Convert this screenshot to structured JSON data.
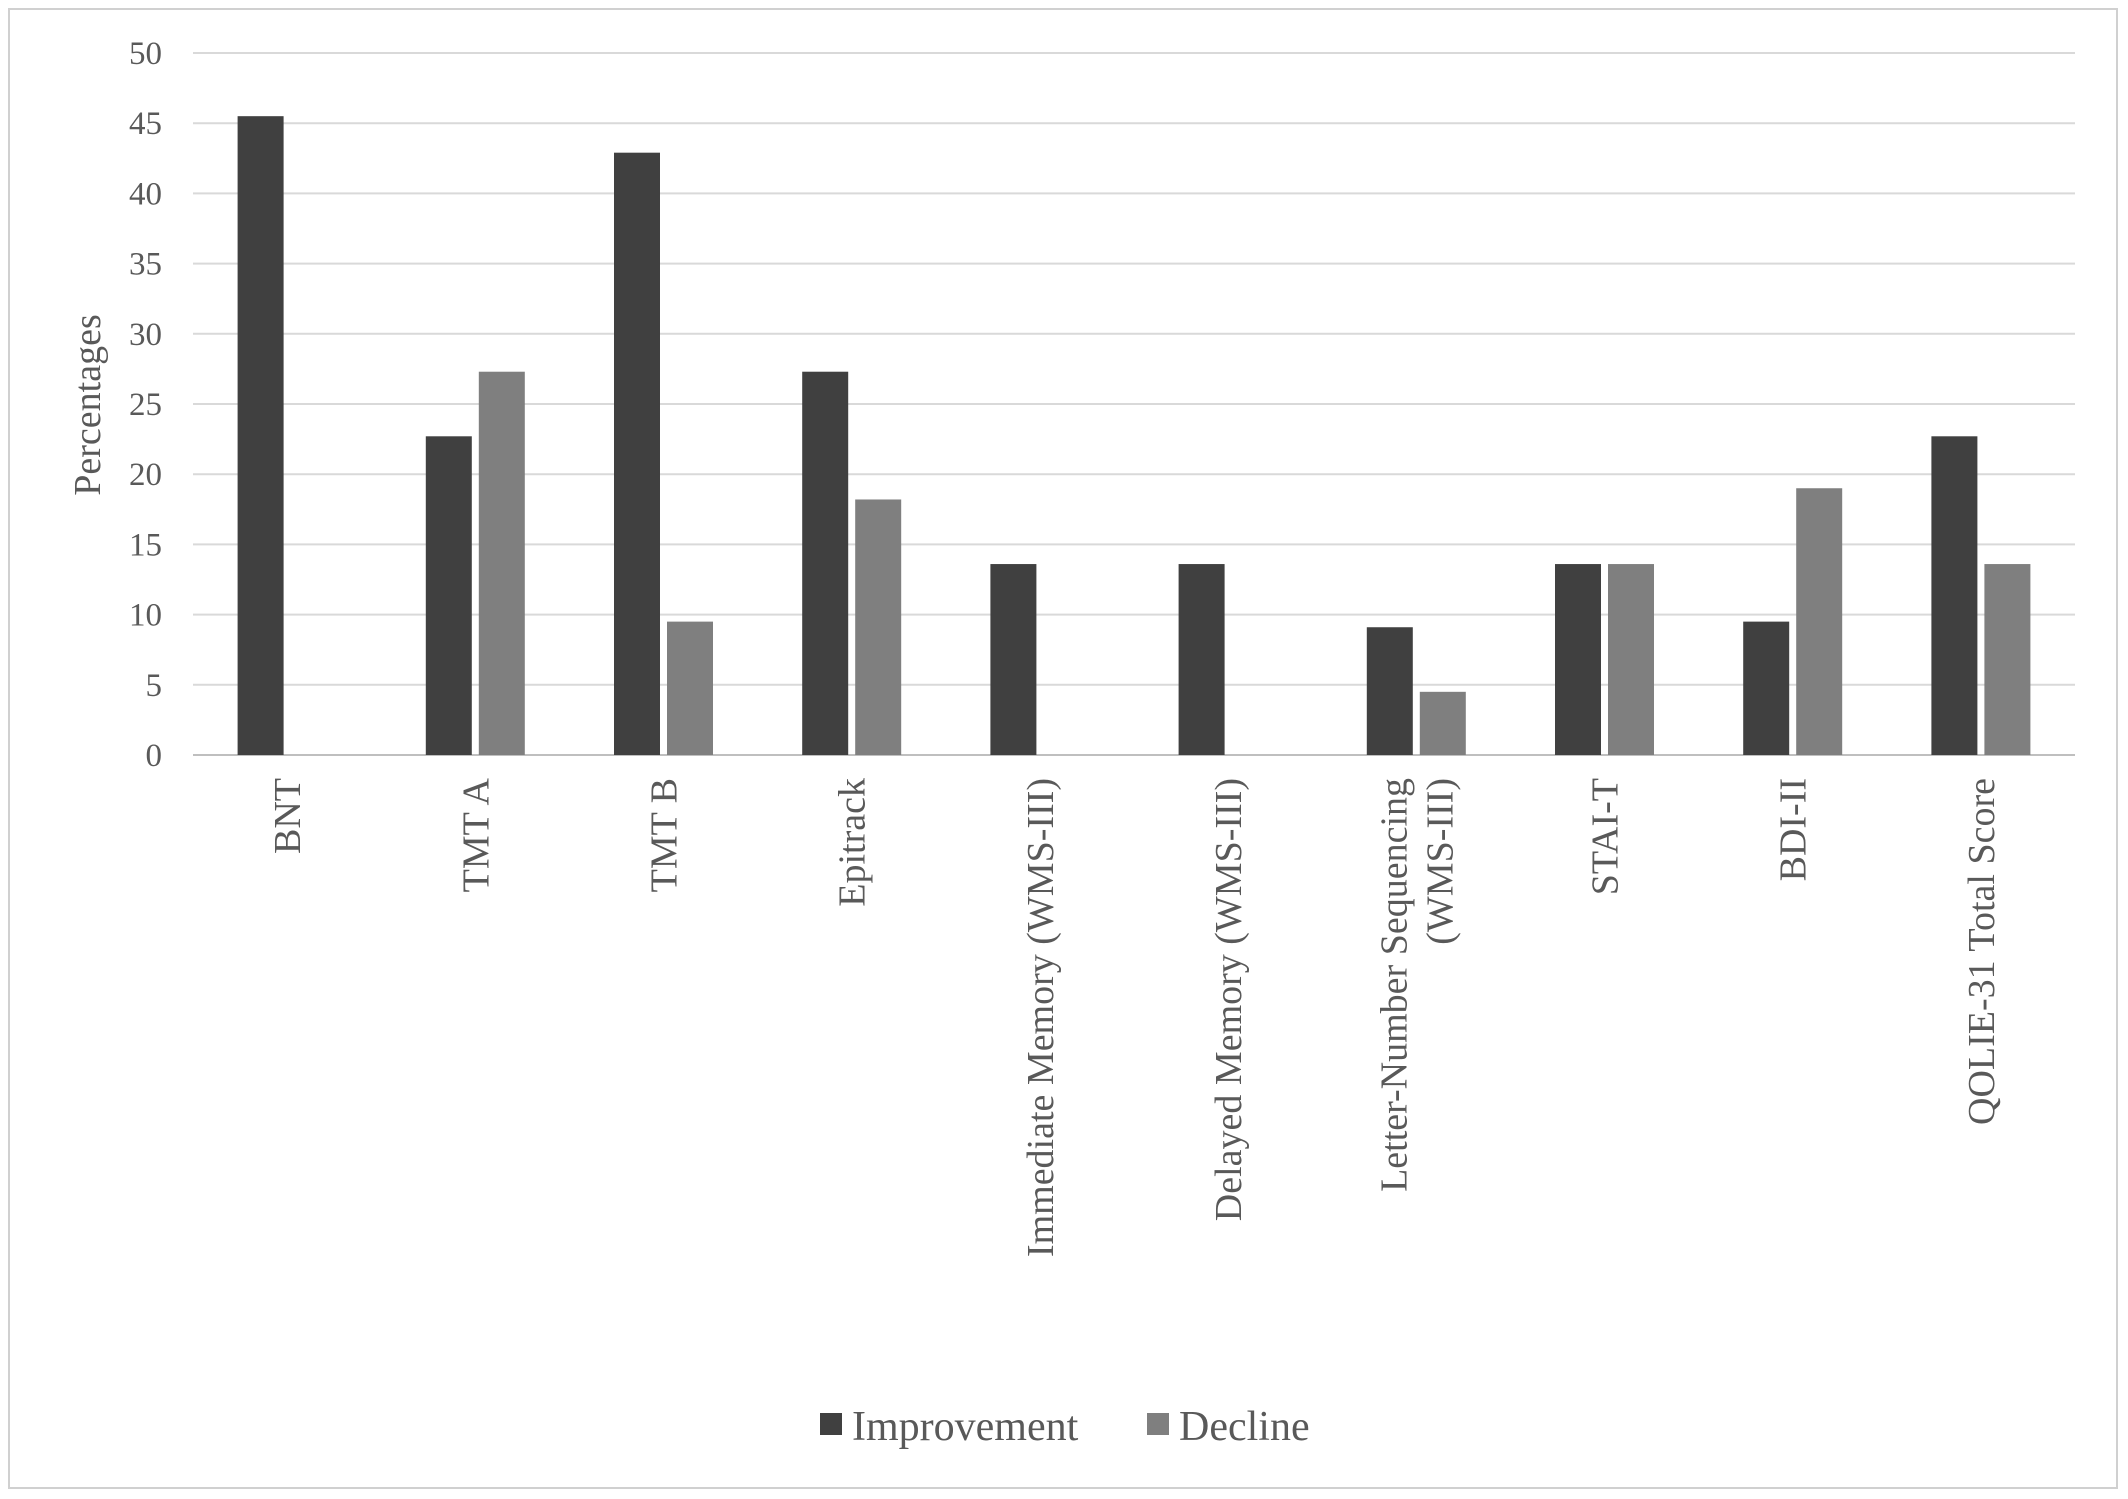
{
  "chart_data": {
    "type": "bar",
    "ylabel": "Percentages",
    "ylim": [
      0,
      50
    ],
    "yticks": [
      0,
      5,
      10,
      15,
      20,
      25,
      30,
      35,
      40,
      45,
      50
    ],
    "grid": true,
    "legend_position": "bottom",
    "categories": [
      [
        "BNT"
      ],
      [
        "TMT A"
      ],
      [
        "TMT B"
      ],
      [
        "Epitrack"
      ],
      [
        "Immediate Memory (WMS-III)"
      ],
      [
        "Delayed Memory (WMS-III)"
      ],
      [
        "Letter-Number Sequencing",
        "(WMS-III)"
      ],
      [
        "STAI-T"
      ],
      [
        "BDI-II"
      ],
      [
        "QOLIE-31  Total Score"
      ]
    ],
    "series": [
      {
        "name": "Improvement",
        "color": "#404040",
        "values": [
          45.5,
          22.7,
          42.9,
          27.3,
          13.6,
          13.6,
          9.1,
          13.6,
          9.5,
          22.7
        ]
      },
      {
        "name": "Decline",
        "color": "#7f7f7f",
        "values": [
          0,
          27.3,
          9.5,
          18.2,
          0,
          0,
          4.5,
          13.6,
          19.0,
          13.6
        ]
      }
    ]
  }
}
